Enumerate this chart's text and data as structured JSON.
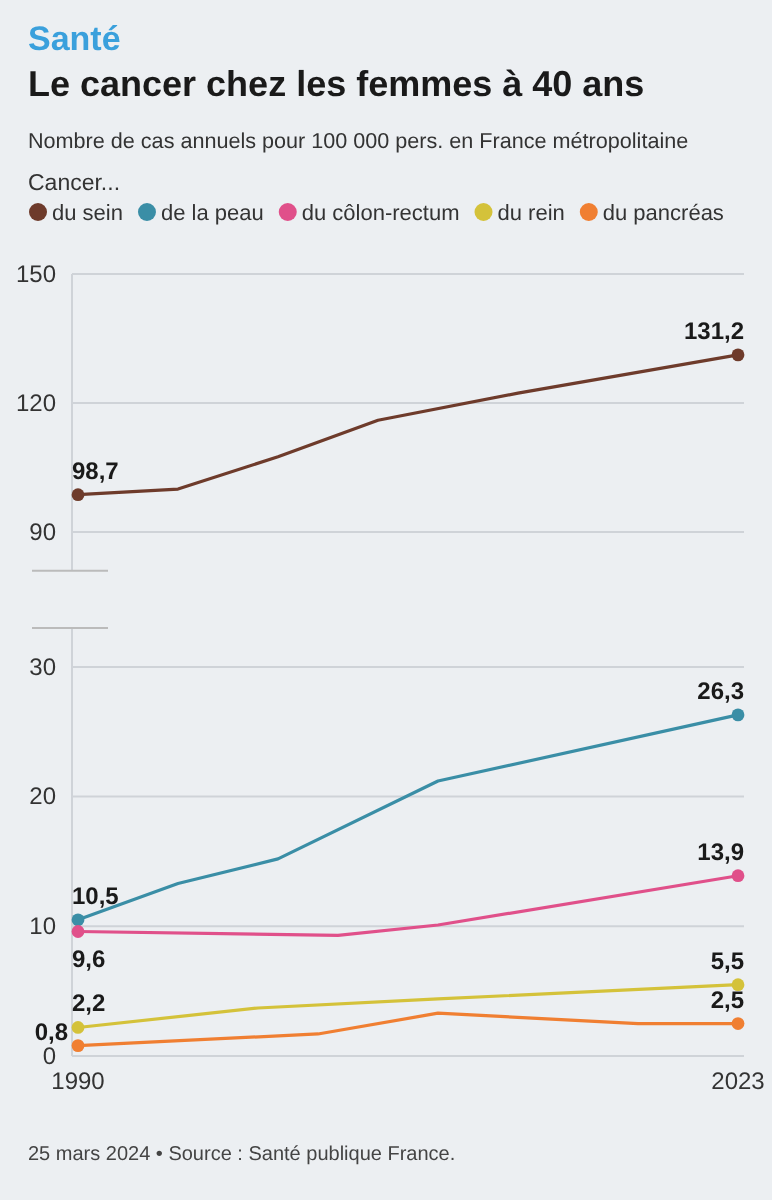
{
  "chart_data": [
    {
      "type": "line",
      "title": "Le cancer chez les femmes à 40 ans",
      "subtitle": "Nombre de cas annuels pour 100 000 pers. en France métropolitaine",
      "legend_title": "Cancer...",
      "annotations": [
        "Santé"
      ],
      "xlim": [
        1989.7,
        2023.3
      ],
      "ylim": [
        81,
        150
      ],
      "yticks": [
        90,
        120,
        150
      ],
      "tick_labels": "y",
      "grid": "y",
      "legend": "top",
      "series": [
        {
          "name": "du sein",
          "color": "#6e3b2b",
          "x": [
            1990,
            1995,
            2000,
            2005,
            2012,
            2023
          ],
          "values": [
            98.7,
            100,
            107.5,
            116,
            122.3,
            131.2
          ],
          "value_labels": [
            "98,7",
            null,
            null,
            null,
            null,
            "131,2"
          ]
        }
      ]
    },
    {
      "type": "line",
      "annotations": [
        "25 mars 2024 • Source : Santé publique France."
      ],
      "xlim": [
        1989.7,
        2023.3
      ],
      "xticks": [
        1990,
        2023
      ],
      "ylim": [
        0,
        33
      ],
      "yticks": [
        0,
        10,
        20,
        30
      ],
      "grid": "y",
      "legend": "top",
      "series": [
        {
          "name": "de la peau",
          "color": "#3a8ea6",
          "x": [
            1990,
            1995,
            2000,
            2008,
            2023
          ],
          "values": [
            10.5,
            13.3,
            15.2,
            21.2,
            26.3
          ],
          "value_labels": [
            "10,5",
            null,
            null,
            null,
            "26,3"
          ]
        },
        {
          "name": "du côlon-rectum",
          "color": "#e0508a",
          "x": [
            1990,
            2003,
            2008,
            2023
          ],
          "values": [
            9.6,
            9.3,
            10.1,
            13.9
          ],
          "value_labels": [
            "9,6",
            null,
            null,
            "13,9"
          ]
        },
        {
          "name": "du rein",
          "color": "#d4c23a",
          "x": [
            1990,
            1999,
            2008,
            2023
          ],
          "values": [
            2.2,
            3.7,
            4.4,
            5.5
          ],
          "value_labels": [
            "2,2",
            null,
            null,
            "5,5"
          ]
        },
        {
          "name": "du pancréas",
          "color": "#f07f32",
          "x": [
            1990,
            2002,
            2008,
            2018,
            2023
          ],
          "values": [
            0.8,
            1.7,
            3.3,
            2.5,
            2.5
          ],
          "value_labels": [
            "0,8",
            null,
            null,
            null,
            "2,5"
          ]
        }
      ]
    }
  ]
}
